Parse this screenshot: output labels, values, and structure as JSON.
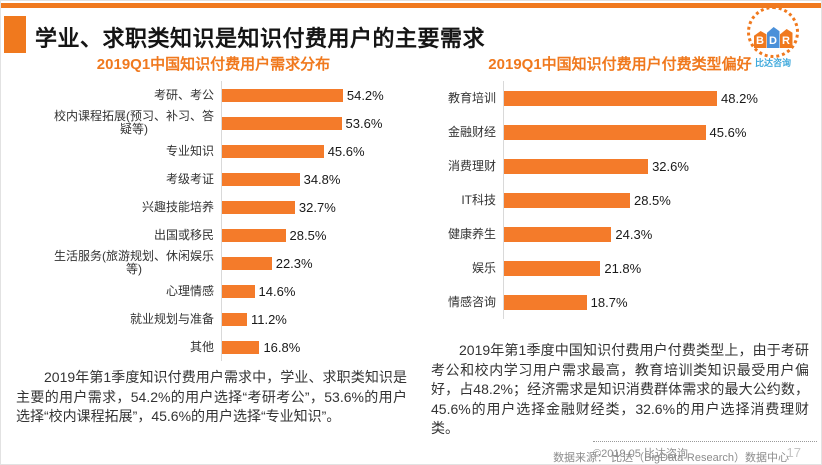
{
  "page": {
    "title": "学业、求职类知识是知识付费用户的主要需求",
    "page_number": "17",
    "copyright": "©2019.05 比达咨询",
    "data_source": "数据来源： 比达（BigData-Research）数据中心"
  },
  "colors": {
    "accent_orange": "#F0791E",
    "bar_orange": "#F47B2A",
    "axis_gray": "#D9D9D9",
    "logo_blue": "#4A90D9",
    "logo_subtext_blue": "#3FA9DC"
  },
  "logo": {
    "letters": {
      "b": "B",
      "d": "D",
      "r": "R"
    },
    "subtext": "比达咨询"
  },
  "analysis": {
    "left": "2019年第1季度知识付费用户需求中，学业、求职类知识是主要的用户需求，54.2%的用户选择“考研考公”，53.6%的用户选择“校内课程拓展”，45.6%的用户选择“专业知识”。",
    "right": "2019年第1季度中国知识付费用户付费类型上，由于考研考公和校内学习用户需求最高，教育培训类知识最受用户偏好，占48.2%；经济需求是知识消费群体需求的最大公约数，45.6%的用户选择金融财经类，32.6%的用户选择消费理财类。"
  },
  "chart_data": [
    {
      "type": "bar",
      "orientation": "horizontal",
      "title": "2019Q1中国知识付费用户需求分布",
      "categories": [
        "考研、考公",
        "校内课程拓展(预习、补习、答疑等)",
        "专业知识",
        "考级考证",
        "兴趣技能培养",
        "出国或移民",
        "生活服务(旅游规划、休闲娱乐等)",
        "心理情感",
        "就业规划与准备",
        "其他"
      ],
      "values": [
        54.2,
        53.6,
        45.6,
        34.8,
        32.7,
        28.5,
        22.3,
        14.6,
        11.2,
        16.8
      ],
      "value_suffix": "%",
      "bar_color": "#F47B2A",
      "value_labels": "end-of-bar",
      "grid": false,
      "legend": false
    },
    {
      "type": "bar",
      "orientation": "horizontal",
      "title": "2019Q1中国知识付费用户付费类型偏好",
      "categories": [
        "教育培训",
        "金融财经",
        "消费理财",
        "IT科技",
        "健康养生",
        "娱乐",
        "情感咨询"
      ],
      "values": [
        48.2,
        45.6,
        32.6,
        28.5,
        24.3,
        21.8,
        18.7
      ],
      "value_suffix": "%",
      "bar_color": "#F47B2A",
      "value_labels": "end-of-bar",
      "grid": false,
      "legend": false
    }
  ]
}
